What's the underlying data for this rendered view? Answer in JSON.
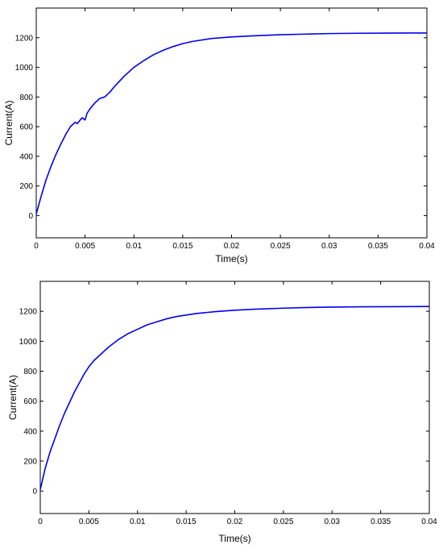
{
  "chart_data": [
    {
      "type": "line",
      "title": "",
      "xlabel": "Time(s)",
      "ylabel": "Current(A)",
      "xlim": [
        0,
        0.04
      ],
      "ylim": [
        -150,
        1400
      ],
      "xticks": [
        "0",
        "0.005",
        "0.01",
        "0.015",
        "0.02",
        "0.025",
        "0.03",
        "0.035",
        "0.04"
      ],
      "yticks": [
        "0",
        "200",
        "400",
        "600",
        "800",
        "1000",
        "1200"
      ],
      "grid": false,
      "color": "#0000ee",
      "series": [
        {
          "x": [
            0,
            0.0005,
            0.001,
            0.0015,
            0.002,
            0.0025,
            0.003,
            0.0035,
            0.004,
            0.0042,
            0.0045,
            0.0047,
            0.005,
            0.0052,
            0.0055,
            0.006,
            0.0065,
            0.007,
            0.0075,
            0.008,
            0.009,
            0.01,
            0.011,
            0.012,
            0.013,
            0.014,
            0.015,
            0.016,
            0.018,
            0.02,
            0.022,
            0.025,
            0.028,
            0.03,
            0.033,
            0.036,
            0.04
          ],
          "y": [
            10,
            130,
            240,
            330,
            410,
            480,
            545,
            600,
            630,
            620,
            645,
            660,
            645,
            690,
            720,
            760,
            790,
            800,
            830,
            870,
            940,
            1000,
            1045,
            1085,
            1115,
            1140,
            1160,
            1175,
            1195,
            1205,
            1212,
            1220,
            1225,
            1228,
            1230,
            1231,
            1232
          ]
        }
      ]
    },
    {
      "type": "line",
      "title": "",
      "xlabel": "Time(s)",
      "ylabel": "Current(A)",
      "xlim": [
        0,
        0.04
      ],
      "ylim": [
        -150,
        1400
      ],
      "xticks": [
        "0",
        "0.005",
        "0.01",
        "0.015",
        "0.02",
        "0.025",
        "0.03",
        "0.035",
        "0.04"
      ],
      "yticks": [
        "0",
        "200",
        "400",
        "600",
        "800",
        "1000",
        "1200"
      ],
      "grid": false,
      "color": "#0000ee",
      "series": [
        {
          "x": [
            0,
            0.0005,
            0.001,
            0.0015,
            0.002,
            0.0025,
            0.003,
            0.0035,
            0.004,
            0.0045,
            0.005,
            0.0055,
            0.006,
            0.007,
            0.008,
            0.009,
            0.01,
            0.011,
            0.012,
            0.013,
            0.014,
            0.015,
            0.016,
            0.018,
            0.02,
            0.022,
            0.025,
            0.028,
            0.03,
            0.033,
            0.036,
            0.04
          ],
          "y": [
            10,
            150,
            260,
            350,
            440,
            520,
            590,
            660,
            720,
            780,
            830,
            870,
            900,
            960,
            1010,
            1050,
            1080,
            1110,
            1130,
            1150,
            1165,
            1175,
            1185,
            1198,
            1207,
            1214,
            1221,
            1226,
            1228,
            1230,
            1231,
            1232
          ]
        }
      ]
    }
  ]
}
